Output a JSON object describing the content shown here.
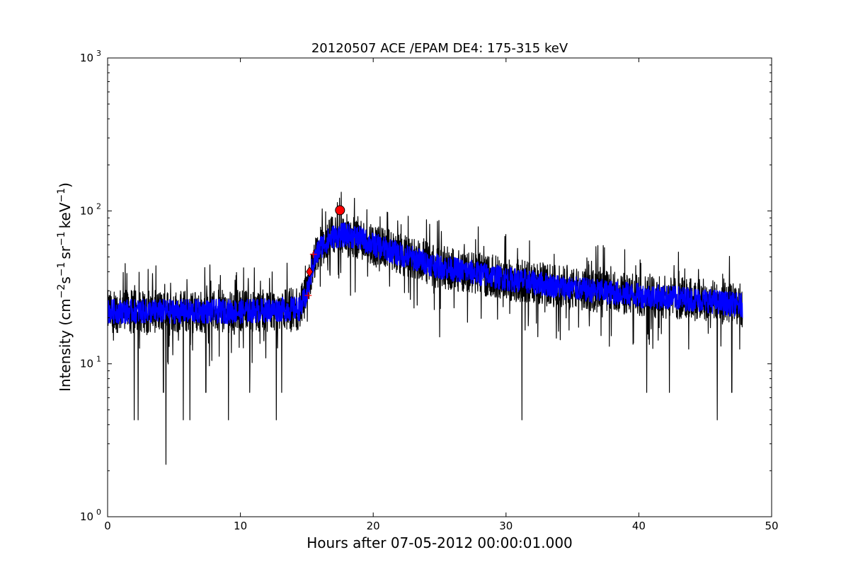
{
  "chart_data": {
    "type": "line",
    "title": "20120507 ACE /EPAM DE4: 175-315 keV",
    "xlabel": "Hours after 07-05-2012 00:00:01.000",
    "ylabel_main": "Intensity (cm",
    "ylabel_exp1": "−2",
    "ylabel_mid1": "s",
    "ylabel_exp2": "−1",
    "ylabel_mid2": "sr",
    "ylabel_exp3": "−1",
    "ylabel_mid3": "keV",
    "ylabel_exp4": "−1",
    "ylabel_end": ")",
    "xlim": [
      0,
      50
    ],
    "ylim": [
      1,
      1000
    ],
    "yscale": "log",
    "grid": false,
    "xticks": [
      0,
      10,
      20,
      30,
      40,
      50
    ],
    "xtick_labels": [
      "0",
      "10",
      "20",
      "30",
      "40",
      "50"
    ],
    "yticks": [
      1,
      10,
      100,
      1000
    ],
    "ytick_base": "10",
    "ytick_exps": [
      "0",
      "1",
      "2",
      "3"
    ],
    "series": [
      {
        "color": "#000000",
        "style": "noisy-line",
        "profile_x": [
          0,
          5,
          10,
          14.5,
          15.0,
          15.5,
          16.0,
          17.0,
          18.0,
          19.0,
          20.0,
          22.0,
          25.0,
          30.0,
          35.0,
          40.0,
          45.0,
          47.8
        ],
        "profile_y": [
          22,
          22,
          22,
          23,
          28,
          45,
          58,
          68,
          70,
          66,
          60,
          52,
          43,
          36,
          31,
          28,
          26,
          24
        ],
        "noise_amplitude_decades": 0.14,
        "dips": [
          {
            "x": 2.0,
            "y": 4.3
          },
          {
            "x": 2.3,
            "y": 4.3
          },
          {
            "x": 4.4,
            "y": 2.2
          },
          {
            "x": 5.7,
            "y": 4.3
          },
          {
            "x": 6.2,
            "y": 4.3
          },
          {
            "x": 9.1,
            "y": 4.3
          },
          {
            "x": 12.7,
            "y": 4.3
          },
          {
            "x": 31.2,
            "y": 4.3
          },
          {
            "x": 45.9,
            "y": 4.3
          },
          {
            "x": 4.2,
            "y": 6.5
          },
          {
            "x": 7.4,
            "y": 6.5
          },
          {
            "x": 10.7,
            "y": 6.5
          },
          {
            "x": 13.1,
            "y": 6.5
          },
          {
            "x": 40.6,
            "y": 6.5
          },
          {
            "x": 42.3,
            "y": 6.5
          },
          {
            "x": 47.0,
            "y": 6.5
          },
          {
            "x": 25.0,
            "y": 15
          },
          {
            "x": 18.3,
            "y": 28
          }
        ]
      },
      {
        "color": "#0000ff",
        "style": "smoothed-line",
        "profile_x": [
          0,
          5,
          10,
          14.5,
          15.0,
          15.5,
          16.0,
          17.0,
          18.0,
          19.0,
          20.0,
          22.0,
          25.0,
          30.0,
          35.0,
          40.0,
          45.0,
          47.8
        ],
        "profile_y": [
          22,
          22,
          22,
          23,
          28,
          45,
          58,
          68,
          70,
          66,
          60,
          52,
          43,
          36,
          31,
          28,
          26,
          24
        ],
        "noise_amplitude_decades": 0.08
      }
    ],
    "markers": [
      {
        "type": "circle",
        "x": 17.5,
        "y": 101,
        "color": "#ff0000"
      },
      {
        "type": "diamond",
        "x": 15.2,
        "y": 40,
        "color": "#ff0000"
      },
      {
        "type": "plus",
        "x": 15.5,
        "y": 52,
        "color": "#ff0000"
      },
      {
        "type": "plus",
        "x": 15.1,
        "y": 28,
        "color": "#ff0000"
      }
    ]
  }
}
